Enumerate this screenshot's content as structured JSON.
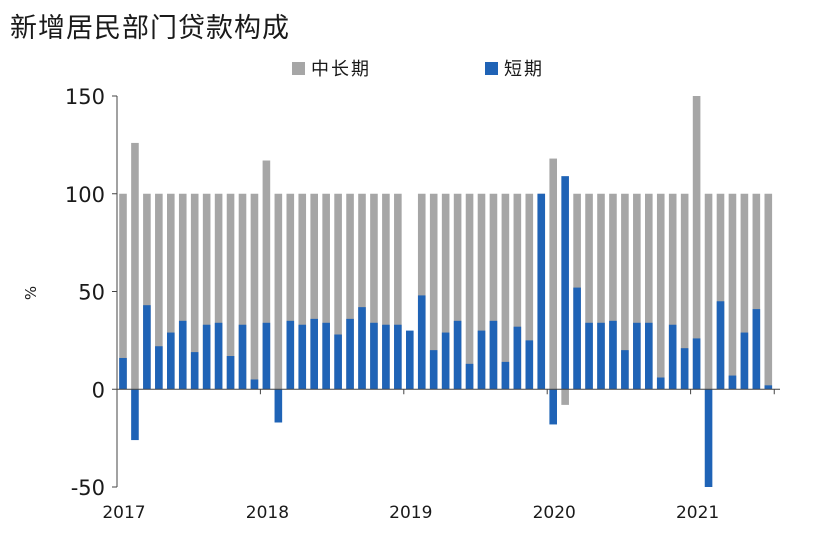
{
  "chart_data": {
    "type": "bar",
    "title": "新增居民部门贷款构成",
    "ylabel": "%",
    "ylim": [
      -50,
      150
    ],
    "yticks": [
      -50,
      0,
      50,
      100,
      150
    ],
    "x_tick_labels": [
      "2017",
      "2018",
      "2019",
      "2020",
      "2021"
    ],
    "legend_position": "top",
    "grid": false,
    "months_per_year": 12,
    "series": [
      {
        "name": "中长期",
        "color": "#a6a6a6",
        "values": [
          100,
          126,
          100,
          100,
          100,
          100,
          100,
          100,
          100,
          100,
          100,
          100,
          117,
          100,
          100,
          100,
          100,
          100,
          100,
          100,
          100,
          100,
          100,
          100,
          null,
          100,
          100,
          100,
          100,
          100,
          100,
          100,
          100,
          100,
          100,
          100,
          118,
          -8,
          100,
          100,
          100,
          100,
          100,
          100,
          100,
          100,
          100,
          100,
          150,
          100,
          100,
          100,
          100,
          100,
          100
        ]
      },
      {
        "name": "短期",
        "color": "#1f63b6",
        "values": [
          16,
          -26,
          43,
          22,
          29,
          35,
          19,
          33,
          34,
          17,
          33,
          5,
          34,
          -17,
          35,
          33,
          36,
          34,
          28,
          36,
          42,
          34,
          33,
          33,
          30,
          48,
          20,
          29,
          35,
          13,
          30,
          35,
          14,
          32,
          25,
          100,
          -18,
          109,
          52,
          34,
          34,
          35,
          20,
          34,
          34,
          6,
          33,
          21,
          26,
          -50,
          45,
          7,
          29,
          41,
          2
        ]
      }
    ]
  }
}
